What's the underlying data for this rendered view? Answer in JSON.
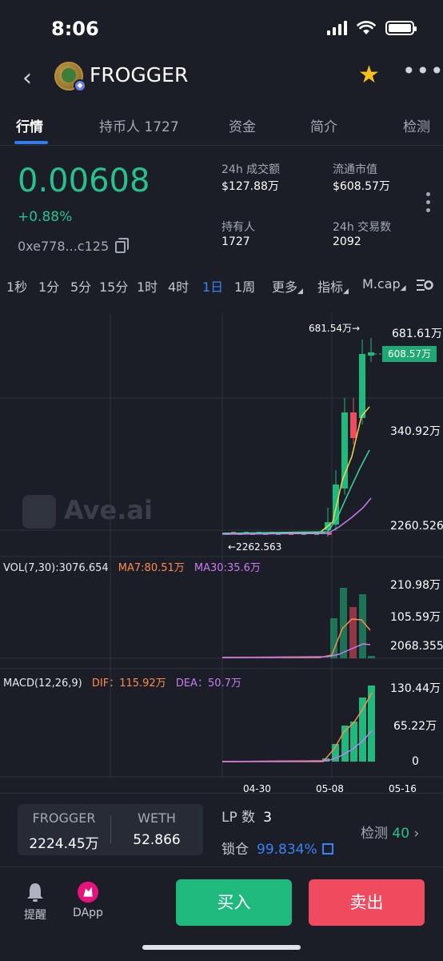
{
  "status_bar": {
    "time": "8:06"
  },
  "header": {
    "token_name": "FROGGER"
  },
  "tabs": [
    "行情",
    "持币人 1727",
    "资金",
    "简介",
    "检测"
  ],
  "price": {
    "value": "0.00608",
    "change": "+0.88%",
    "address": "0xe778...c125"
  },
  "stats": [
    {
      "label": "24h 成交额",
      "value": "$127.88万"
    },
    {
      "label": "流通市值",
      "value": "$608.57万"
    },
    {
      "label": "持有人",
      "value": "1727"
    },
    {
      "label": "24h 交易数",
      "value": "2092"
    }
  ],
  "intervals": {
    "items": [
      "1秒",
      "1分",
      "5分",
      "15分",
      "1时",
      "4时",
      "1日",
      "1周",
      "更多",
      "指标",
      "M.cap"
    ],
    "active": "1日"
  },
  "chart": {
    "watermark": "Ave.ai",
    "price_axis": [
      "681.61万",
      "340.92万",
      "2260.526"
    ],
    "current_tag": "608.57万",
    "high_marker": "681.54万→",
    "low_marker": "←2262.563",
    "vol_line": {
      "label": "VOL(7,30):3076.654",
      "ma7": "MA7:80.51万",
      "ma30": "MA30:35.6万"
    },
    "vol_axis": [
      "210.98万",
      "105.59万",
      "2068.355"
    ],
    "macd_line": {
      "label": "MACD(12,26,9)",
      "dif": "DIF：115.92万",
      "dea": "DEA：50.7万"
    },
    "macd_axis": [
      "130.44万",
      "65.22万",
      "0"
    ],
    "dates": [
      "04-30",
      "05-08",
      "05-16"
    ],
    "colors": {
      "up": "#1fb97e",
      "down": "#f04a5f",
      "ma7": "#f7d54a",
      "ma30": "#3ed6a0",
      "ma60": "#c97bf2"
    }
  },
  "pool": {
    "token_a": "FROGGER",
    "amount_a": "2224.45万",
    "token_b": "WETH",
    "amount_b": "52.866",
    "lp_label": "LP 数",
    "lp_value": "3",
    "lock_label": "锁仓",
    "lock_value": "99.834%",
    "detect_label": "检测",
    "detect_value": "40"
  },
  "nav": {
    "alert": "提醒",
    "dapp": "DApp",
    "buy": "买入",
    "sell": "卖出"
  }
}
